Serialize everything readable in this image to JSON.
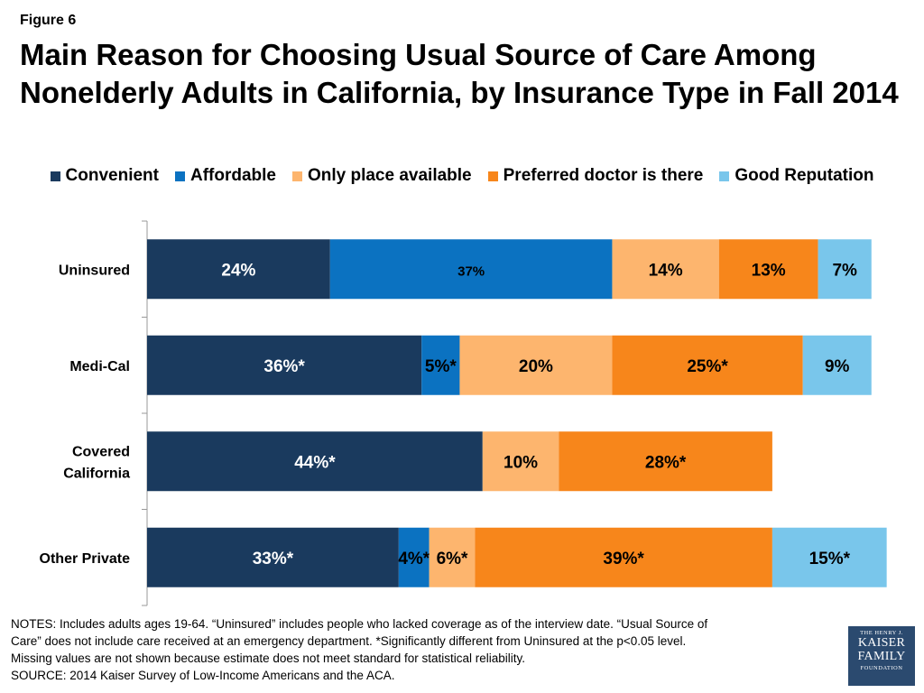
{
  "figure_label": "Figure 6",
  "title_line1": "Main Reason for Choosing Usual Source of Care Among",
  "title_line2": "Nonelderly Adults in California, by Insurance Type in Fall 2014",
  "colors": {
    "Convenient": "#1a3a5e",
    "Affordable": "#0b72c1",
    "Only place available": "#fdb56e",
    "Preferred doctor is there": "#f7861b",
    "Good Reputation": "#79c6eb"
  },
  "notes": {
    "line1": "NOTES: Includes adults ages 19-64. “Uninsured” includes people who lacked coverage as of the interview date. “Usual Source of",
    "line2": "Care” does not include care received at an emergency department. *Significantly different from Uninsured at the p<0.05 level.",
    "line3": "Missing values are not shown because estimate does not meet standard for statistical reliability.",
    "line4": "SOURCE: 2014 Kaiser Survey of Low-Income Americans and the ACA."
  },
  "logo": {
    "line1": "THE HENRY J.",
    "line2": "KAISER",
    "line3": "FAMILY",
    "line4": "FOUNDATION"
  },
  "chart_data": {
    "type": "bar",
    "orientation": "horizontal",
    "stacked": true,
    "categories": [
      "Uninsured",
      "Medi-Cal",
      "Covered California",
      "Other Private"
    ],
    "category_lines": [
      [
        "Uninsured"
      ],
      [
        "Medi-Cal"
      ],
      [
        "Covered",
        "California"
      ],
      [
        "Other Private"
      ]
    ],
    "series": [
      {
        "name": "Convenient",
        "values": [
          24,
          36,
          44,
          33
        ],
        "labels": [
          "24%",
          "36%*",
          "44%*",
          "33%*"
        ]
      },
      {
        "name": "Affordable",
        "values": [
          37,
          5,
          null,
          4
        ],
        "labels": [
          "37%",
          "5%*",
          "",
          "4%*"
        ]
      },
      {
        "name": "Only place available",
        "values": [
          14,
          20,
          10,
          6
        ],
        "labels": [
          "14%",
          "20%",
          "10%",
          "6%*"
        ]
      },
      {
        "name": "Preferred doctor is there",
        "values": [
          13,
          25,
          28,
          39
        ],
        "labels": [
          "13%",
          "25%*",
          "28%*",
          "39%*"
        ]
      },
      {
        "name": "Good Reputation",
        "values": [
          7,
          9,
          null,
          15
        ],
        "labels": [
          "7%",
          "9%",
          "",
          "15%*"
        ]
      }
    ],
    "xlim": [
      0,
      100
    ],
    "legend_position": "top",
    "grid": false
  }
}
